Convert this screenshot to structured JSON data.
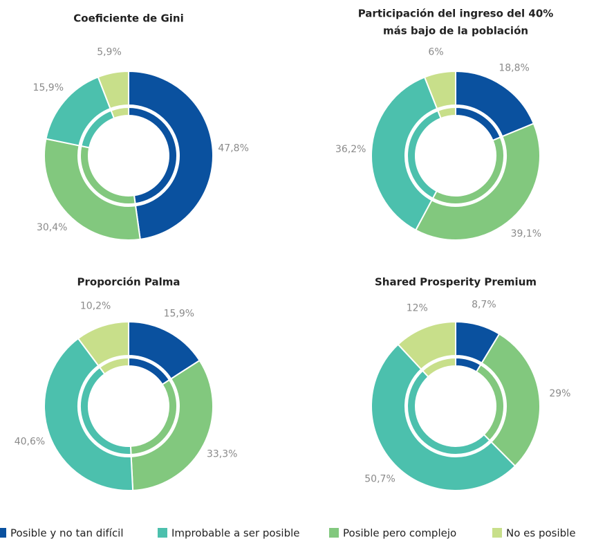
{
  "legend": [
    {
      "name": "Posible y no tan difícil",
      "color": "#0a519f"
    },
    {
      "name": "Improbable a ser posible",
      "color": "#4cc0ad"
    },
    {
      "name": "Posible pero complejo",
      "color": "#82c87e"
    },
    {
      "name": "No es posible",
      "color": "#c8df8a"
    }
  ],
  "chart_data": [
    {
      "type": "pie",
      "title": [
        "Coeficiente de Gini"
      ],
      "values": [
        47.8,
        30.4,
        15.9,
        5.9
      ],
      "value_labels": [
        "47,8%",
        "30,4%",
        "15,9%",
        "5,9%"
      ],
      "colors": [
        "#0a519f",
        "#82c87e",
        "#4cc0ad",
        "#c8df8a"
      ]
    },
    {
      "type": "pie",
      "title": [
        "Participación del ingreso del 40%",
        "más bajo de la población"
      ],
      "values": [
        18.8,
        39.1,
        36.2,
        6
      ],
      "value_labels": [
        "18,8%",
        "39,1%",
        "36,2%",
        "6%"
      ],
      "colors": [
        "#0a519f",
        "#82c87e",
        "#4cc0ad",
        "#c8df8a"
      ]
    },
    {
      "type": "pie",
      "title": [
        "Proporción Palma"
      ],
      "values": [
        15.9,
        33.3,
        40.6,
        10.2
      ],
      "value_labels": [
        "15,9%",
        "33,3%",
        "40,6%",
        "10,2%"
      ],
      "colors": [
        "#0a519f",
        "#82c87e",
        "#4cc0ad",
        "#c8df8a"
      ]
    },
    {
      "type": "pie",
      "title": [
        "Shared Prosperity Premium"
      ],
      "values": [
        8.7,
        29,
        50.7,
        12
      ],
      "value_labels": [
        "8,7%",
        "29%",
        "50,7%",
        "12%"
      ],
      "colors": [
        "#0a519f",
        "#82c87e",
        "#4cc0ad",
        "#c8df8a"
      ]
    }
  ]
}
